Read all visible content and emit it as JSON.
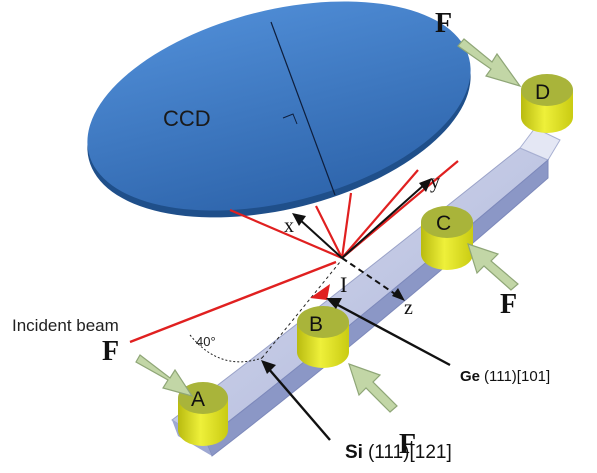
{
  "diagram": {
    "ccd_label": "CCD",
    "incident_beam_label": "Incident beam",
    "angle_label": "40°",
    "point_label": "I",
    "axes": {
      "x": "x",
      "y": "y",
      "z": "z"
    },
    "force_label": "F",
    "supports": {
      "a": "A",
      "b": "B",
      "c": "C",
      "d": "D"
    },
    "ge_crystal": {
      "element": "Ge",
      "orientation": "(111)[101]"
    },
    "si_crystal": {
      "element": "Si",
      "orientation": "(111)[121]"
    },
    "colors": {
      "ccd_fill": "#3f7bc4",
      "ccd_edge": "#1f4f8a",
      "crystal_top": "#c9cfe8",
      "crystal_front": "#8b97c6",
      "support_yellow": "#e8ea1a",
      "support_olive": "#a9b43a",
      "force_arrow": "#c2d6a6",
      "ray_red": "#e02020"
    }
  }
}
